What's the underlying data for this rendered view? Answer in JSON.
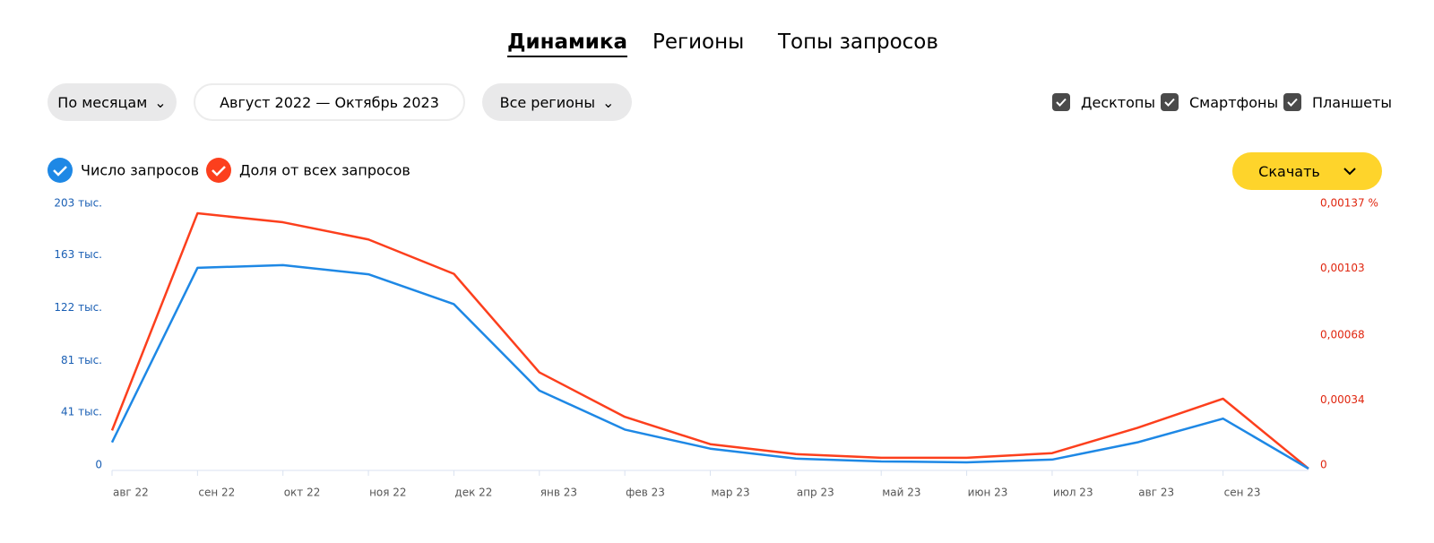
{
  "tabs": [
    "Динамика",
    "Регионы",
    "Топы запросов"
  ],
  "filters": {
    "period_mode": "По месяцам",
    "date_range": "Август 2022 — Октябрь 2023",
    "regions": "Все регионы"
  },
  "devices": [
    "Десктопы",
    "Смартфоны",
    "Планшеты"
  ],
  "download": "Скачать",
  "chart_data": {
    "type": "line",
    "categories": [
      "авг 22",
      "сен 22",
      "окт 22",
      "ноя 22",
      "дек 22",
      "янв 23",
      "фев 23",
      "мар 23",
      "апр 23",
      "май 23",
      "июн 23",
      "июл 23",
      "авг 23",
      "сен 23",
      null
    ],
    "series": [
      {
        "name": "Число запросов",
        "color": "#1e88e5",
        "values": [
          20400,
          155800,
          157900,
          150800,
          127600,
          60600,
          30300,
          15500,
          7800,
          5600,
          4900,
          7000,
          20400,
          38800,
          0
        ]
      },
      {
        "name": "Доля от всех запросов",
        "color": "#fc3f1d",
        "axis": "y2",
        "values": [
          0.0002,
          0.001337,
          0.00129,
          0.0012,
          0.00102,
          0.000504,
          0.000271,
          0.000128,
          7.6e-05,
          5.7e-05,
          5.7e-05,
          8.1e-05,
          0.000214,
          0.000366,
          0
        ]
      }
    ],
    "ylim": [
      0,
      203000
    ],
    "yticks": [
      0,
      {
        "value": 41000,
        "label": "41 тыс."
      },
      {
        "value": 81000,
        "label": "81 тыс."
      },
      {
        "value": 122000,
        "label": "122 тыс."
      },
      {
        "value": 163000,
        "label": "163 тыс."
      },
      {
        "value": 203000,
        "label": "203 тыс."
      }
    ],
    "y2lim": [
      0,
      0.00137
    ],
    "y2ticks": [
      0,
      {
        "value": 0.00034,
        "label": "0,00034"
      },
      {
        "value": 0.00068,
        "label": "0,00068"
      },
      {
        "value": 0.00103,
        "label": "0,00103"
      },
      {
        "value": 0.00137,
        "label": "0,00137 %"
      }
    ]
  }
}
